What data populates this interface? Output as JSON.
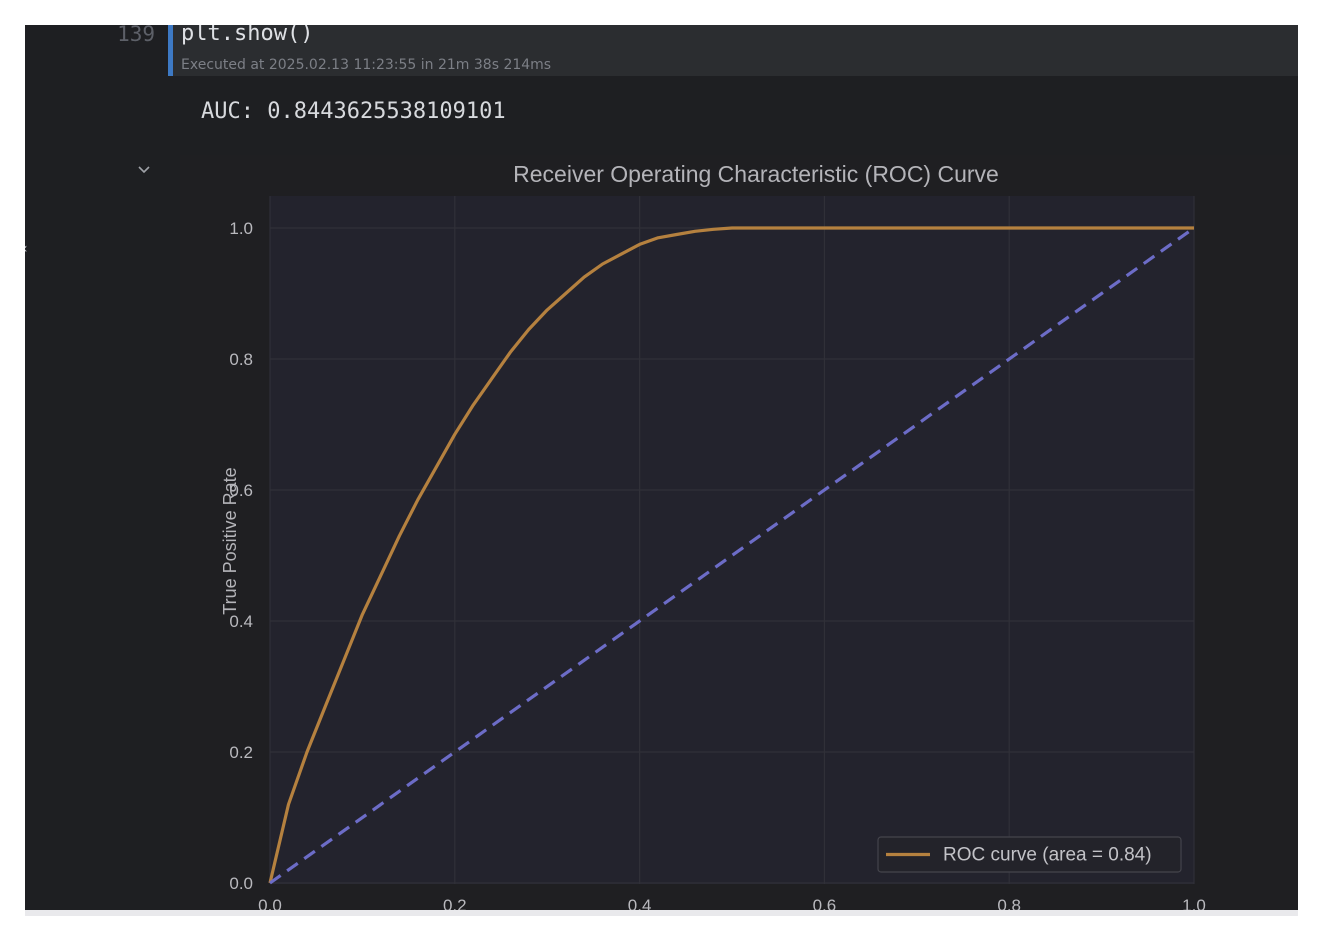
{
  "cell": {
    "line_number": "139",
    "code": "plt.show()",
    "executed_info": "Executed at 2025.02.13 11:23:55 in 21m 38s 214ms"
  },
  "output": {
    "auc_text": "AUC: 0.8443625538109101"
  },
  "icons": {
    "collapse": "chevron-down-icon",
    "edge": "chevron-left-icon"
  },
  "chart_data": {
    "type": "line",
    "title": "Receiver Operating Characteristic (ROC) Curve",
    "xlabel": "",
    "ylabel": "True Positive Rate",
    "xlim": [
      0,
      1
    ],
    "ylim": [
      0,
      1
    ],
    "xticks": [
      "0.0",
      "0.2",
      "0.4",
      "0.6",
      "0.8",
      "1.0"
    ],
    "yticks": [
      "0.0",
      "0.2",
      "0.4",
      "0.6",
      "0.8",
      "1.0"
    ],
    "grid": true,
    "legend_position": "bottom-right",
    "series": [
      {
        "name": "ROC curve (area = 0.84)",
        "color": "#b5813f",
        "style": "solid",
        "x": [
          0,
          0.005,
          0.02,
          0.04,
          0.06,
          0.08,
          0.1,
          0.12,
          0.14,
          0.16,
          0.18,
          0.2,
          0.22,
          0.24,
          0.26,
          0.28,
          0.3,
          0.32,
          0.34,
          0.36,
          0.38,
          0.4,
          0.42,
          0.44,
          0.46,
          0.48,
          0.5,
          0.55,
          0.6,
          0.7,
          0.8,
          0.9,
          1.0
        ],
        "y": [
          0,
          0.03,
          0.12,
          0.2,
          0.27,
          0.34,
          0.41,
          0.47,
          0.53,
          0.585,
          0.635,
          0.685,
          0.73,
          0.77,
          0.81,
          0.845,
          0.875,
          0.9,
          0.925,
          0.945,
          0.96,
          0.975,
          0.985,
          0.99,
          0.995,
          0.998,
          1.0,
          1.0,
          1.0,
          1.0,
          1.0,
          1.0,
          1.0
        ]
      },
      {
        "name": "",
        "color": "#6c6cc7",
        "style": "dashed",
        "x": [
          0,
          1
        ],
        "y": [
          0,
          1
        ]
      }
    ]
  }
}
